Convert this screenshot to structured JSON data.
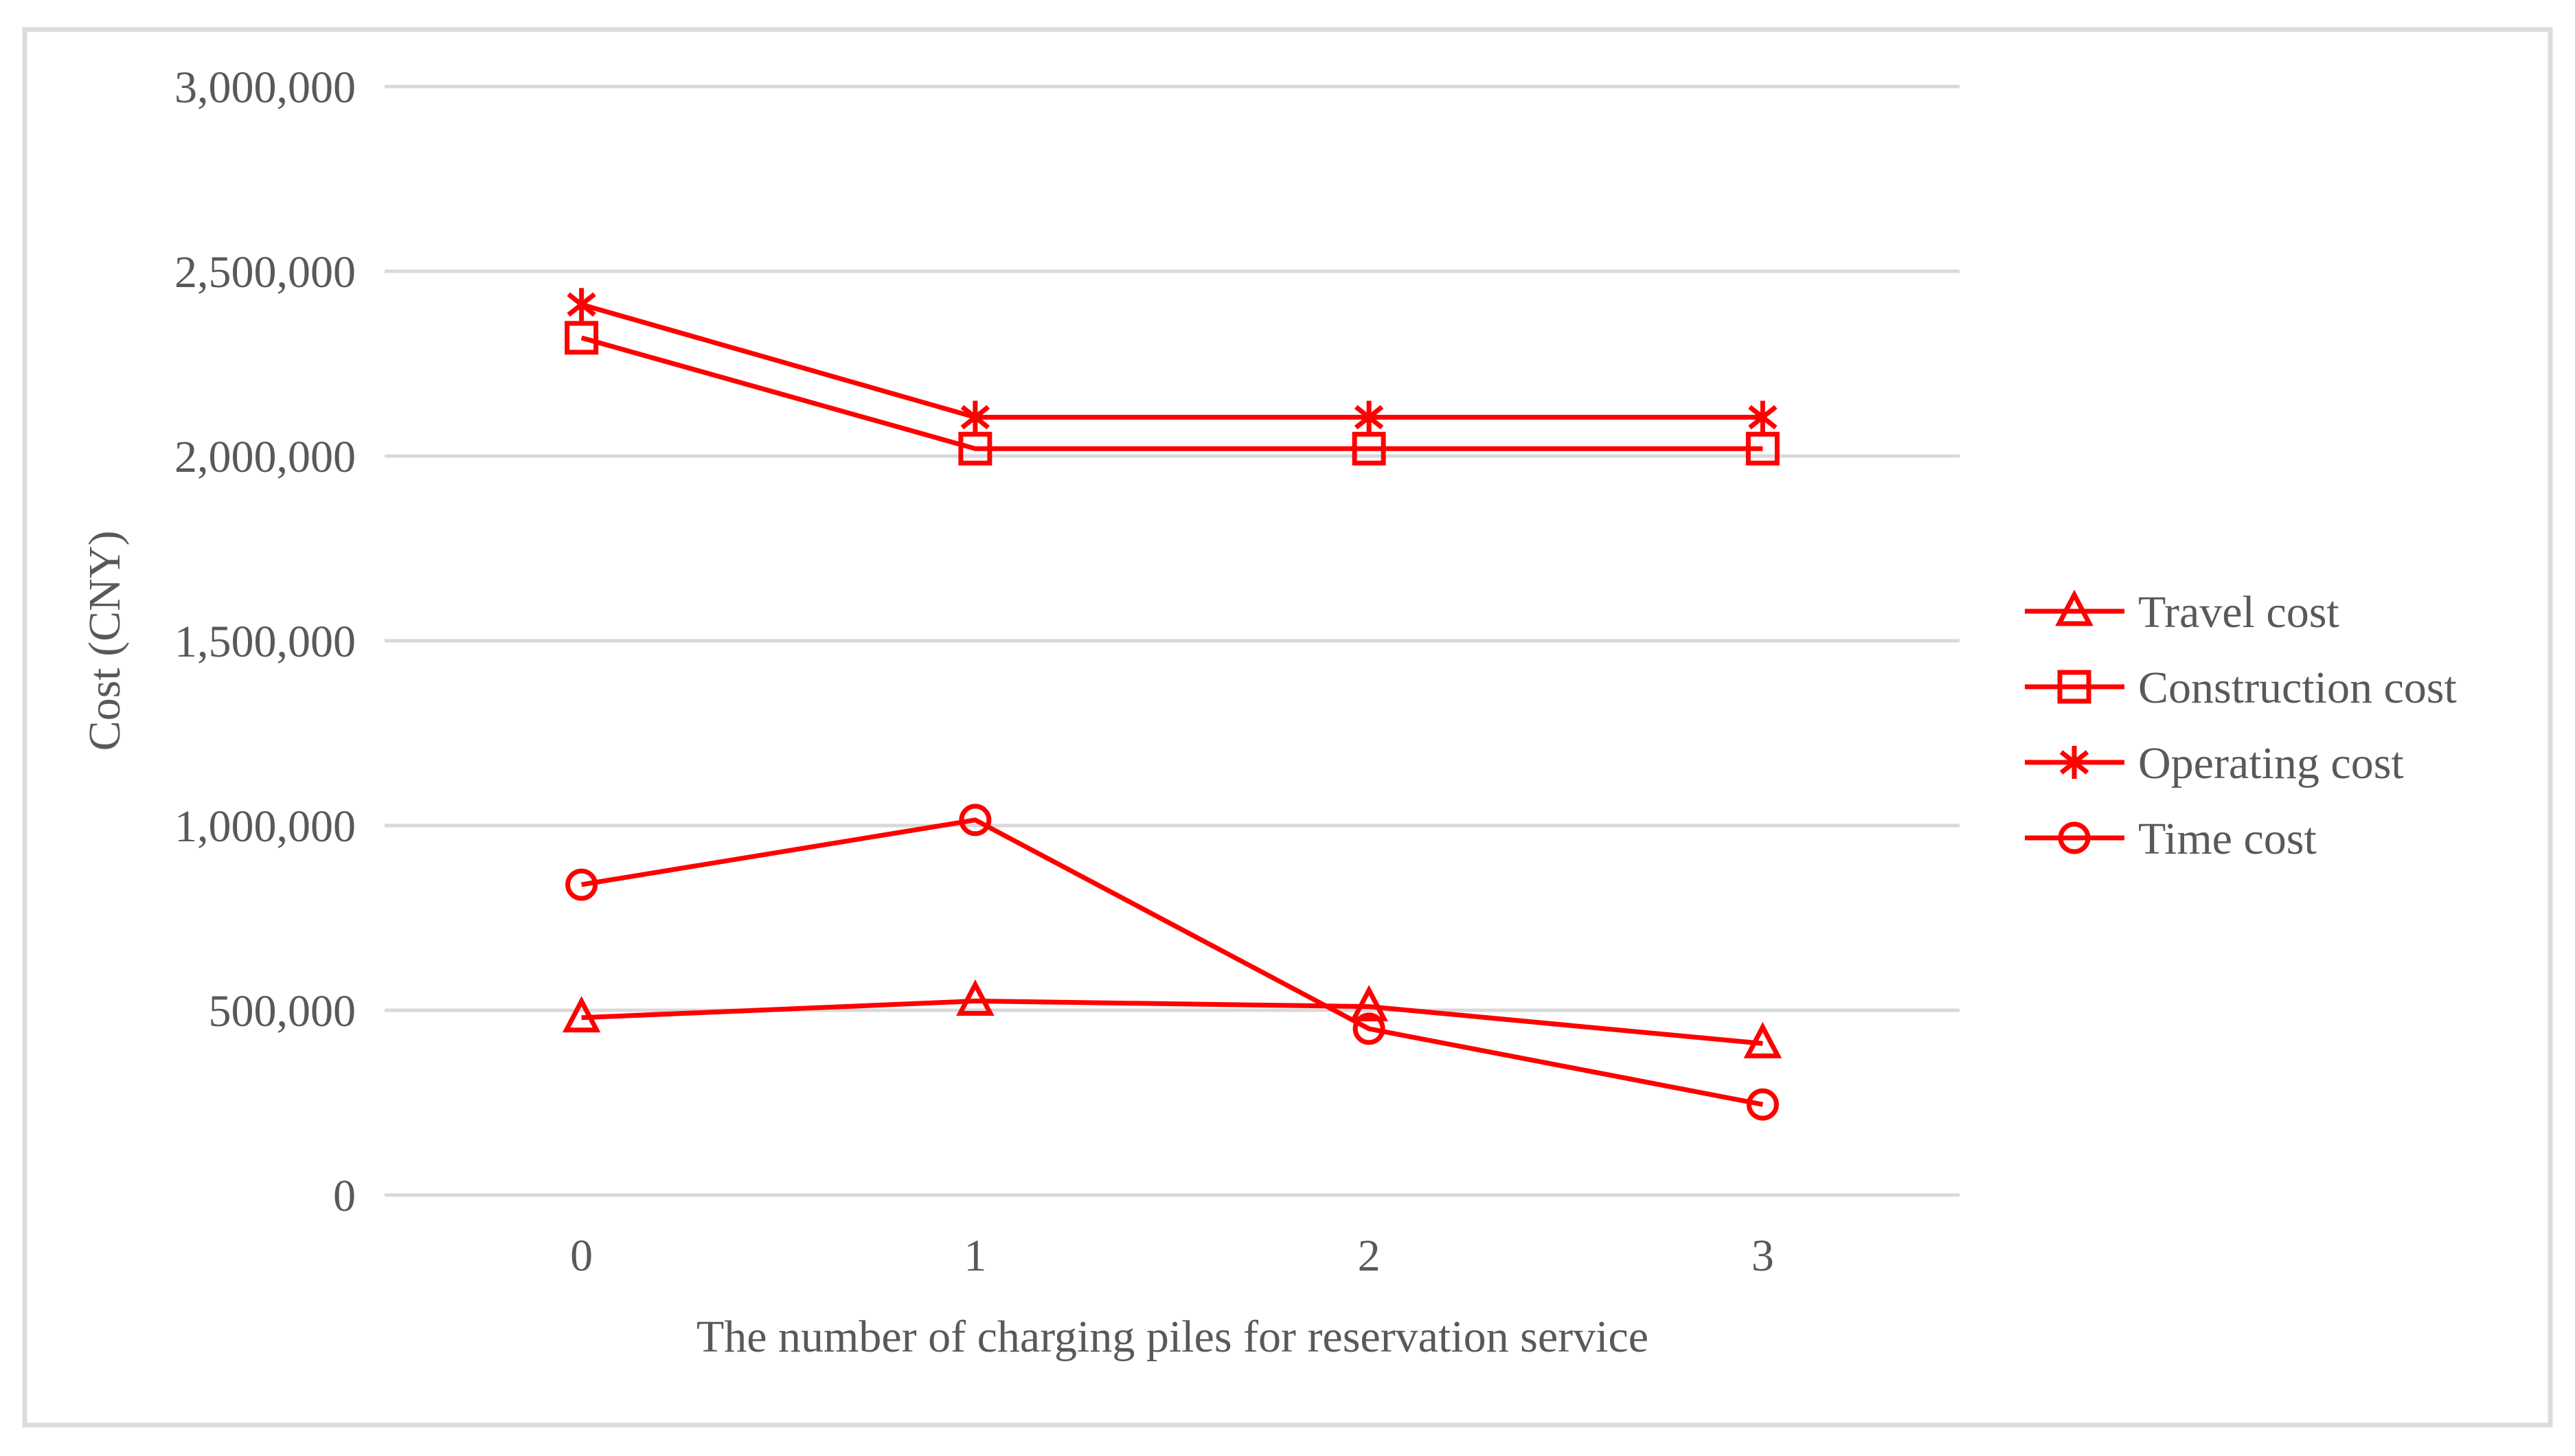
{
  "figure": {
    "description": "Line chart of costs vs number of charging piles for reservation service",
    "background": "#FFFFFF"
  },
  "colors": {
    "series": "#FF0000",
    "grid": "#D9D9D9",
    "border": "#DCDCDC",
    "text": "#595959"
  },
  "chart_data": {
    "type": "line",
    "x": [
      "0",
      "1",
      "2",
      "3"
    ],
    "xlabel": "The number of charging piles for reservation service",
    "ylabel": "Cost (CNY)",
    "ylim": [
      0,
      3000000
    ],
    "ytick_step": 500000,
    "ytick_values": [
      0,
      500000,
      1000000,
      1500000,
      2000000,
      2500000,
      3000000
    ],
    "ytick_labels": [
      "0",
      "500,000",
      "1,000,000",
      "1,500,000",
      "2,000,000",
      "2,500,000",
      "3,000,000"
    ],
    "grid": "horizontal",
    "legend_position": "right",
    "series": [
      {
        "name": "Travel cost",
        "marker": "triangle",
        "values": [
          480000,
          525000,
          510000,
          410000
        ]
      },
      {
        "name": "Construction cost",
        "marker": "square",
        "values": [
          2320000,
          2020000,
          2020000,
          2020000
        ]
      },
      {
        "name": "Operating cost",
        "marker": "star",
        "values": [
          2410000,
          2105000,
          2105000,
          2105000
        ]
      },
      {
        "name": "Time cost",
        "marker": "circle",
        "values": [
          840000,
          1015000,
          450000,
          245000
        ]
      }
    ]
  }
}
